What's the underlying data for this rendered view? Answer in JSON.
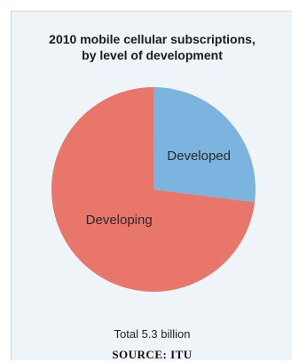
{
  "chart_data": {
    "type": "pie",
    "title": "2010 mobile cellular subscriptions, by level of development",
    "title_lines": [
      "2010 mobile cellular subscriptions,",
      "by level of development"
    ],
    "slices": [
      {
        "label": "Developed",
        "value": 27,
        "color": "#7bb5df"
      },
      {
        "label": "Developing",
        "value": 73,
        "color": "#e9766a"
      }
    ],
    "start_angle_deg": 0,
    "direction": "clockwise",
    "annotation": "Total 5.3 billion",
    "source": "SOURCE: ITU"
  }
}
